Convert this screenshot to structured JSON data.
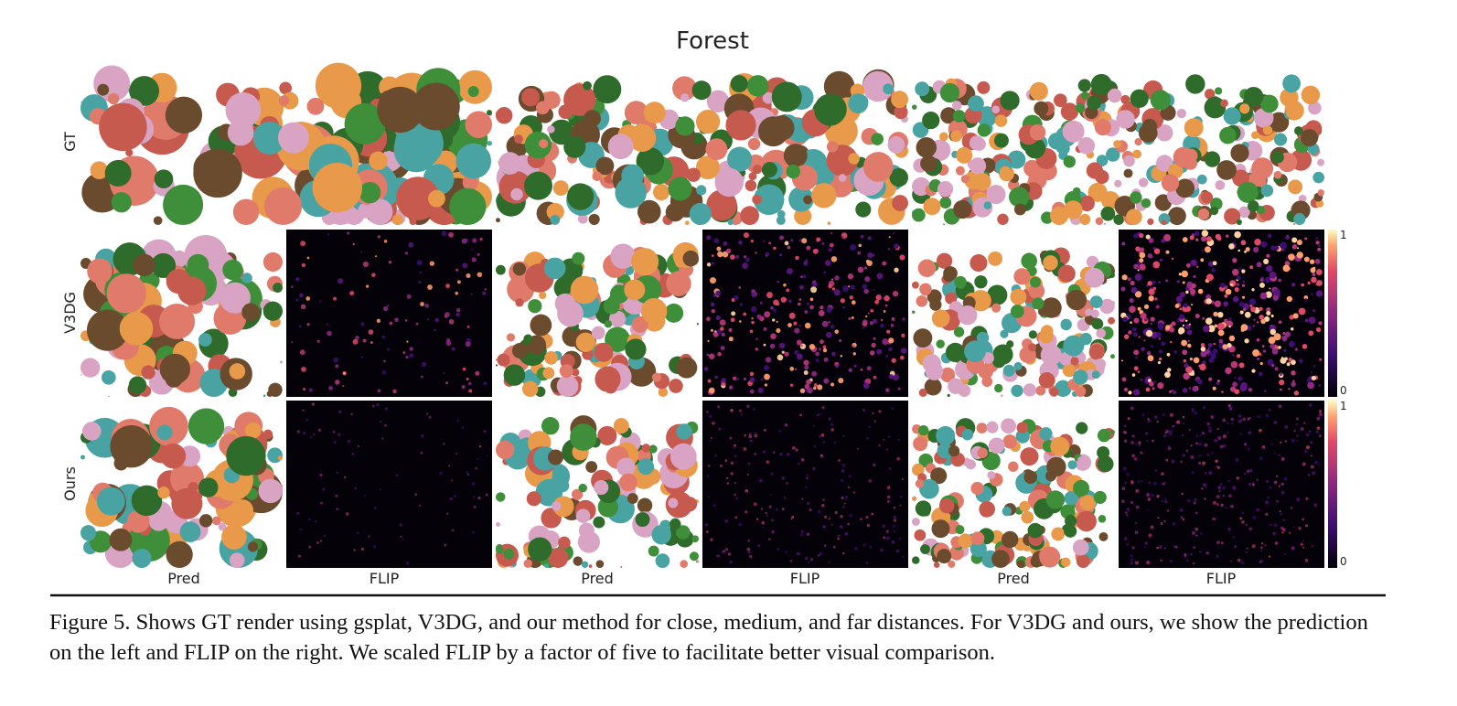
{
  "figure": {
    "title": "Forest",
    "row_labels": [
      "GT",
      "V3DG",
      "Ours"
    ],
    "column_labels": [
      "Pred",
      "FLIP",
      "Pred",
      "FLIP",
      "Pred",
      "FLIP"
    ],
    "colorbars": [
      {
        "max": "1",
        "min": "0"
      },
      {
        "max": "1",
        "min": "0"
      }
    ],
    "caption": "Figure 5. Shows GT render using gsplat, V3DG, and our method for close, medium, and far distances. For V3DG and ours, we show the prediction on the left and FLIP on the right. We scaled FLIP by a factor of five to facilitate better visual comparison."
  }
}
